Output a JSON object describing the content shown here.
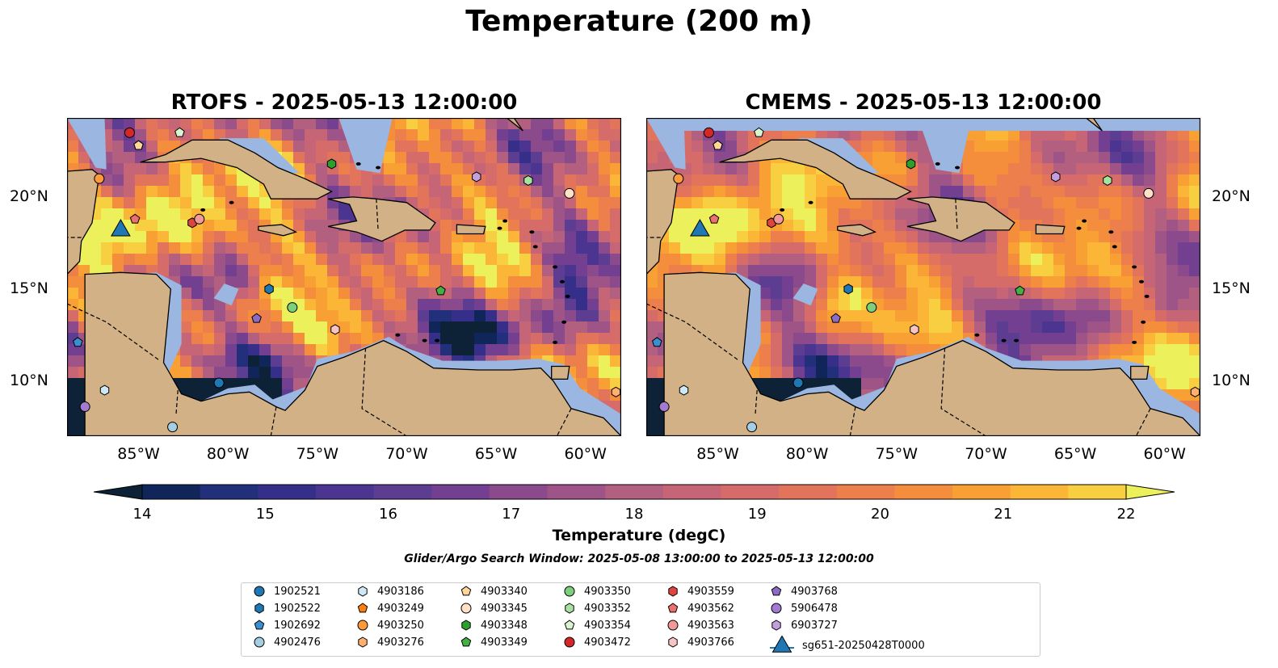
{
  "title": "Temperature (200 m)",
  "panels": [
    {
      "title": "RTOFS - 2025-05-13 12:00:00"
    },
    {
      "title": "CMEMS - 2025-05-13 12:00:00"
    }
  ],
  "map": {
    "lon_range": [
      -89,
      -58
    ],
    "lat_range": [
      7,
      24.3
    ],
    "lon_ticks": [
      "85°W",
      "80°W",
      "75°W",
      "70°W",
      "65°W",
      "60°W"
    ],
    "lat_ticks": [
      "10°N",
      "15°N",
      "20°N"
    ],
    "land_color": "#d1b185",
    "shallow_color": "#9bb6e0"
  },
  "colorbar": {
    "label": "Temperature (degC)",
    "ticks": [
      "14",
      "15",
      "16",
      "17",
      "18",
      "19",
      "20",
      "21",
      "22"
    ],
    "range": [
      14,
      22
    ],
    "colors": [
      "#0d2237",
      "#10265a",
      "#222f7a",
      "#362f8a",
      "#4b3590",
      "#5d3d92",
      "#733f91",
      "#8a4a8c",
      "#9e5486",
      "#b25f80",
      "#c66576",
      "#d66c6a",
      "#e2745c",
      "#ec7f4c",
      "#f48e3c",
      "#f8a033",
      "#fbb537",
      "#f9cf42",
      "#ecf05a"
    ]
  },
  "search_window": "Glider/Argo Search Window: 2025-05-08 13:00:00 to 2025-05-13 12:00:00",
  "legend": [
    {
      "label": "1902521",
      "marker": "circle",
      "color": "#1f77b4"
    },
    {
      "label": "1902522",
      "marker": "hexagon",
      "color": "#1f77b4"
    },
    {
      "label": "1902692",
      "marker": "pentagon",
      "color": "#3a8fd0"
    },
    {
      "label": "4902476",
      "marker": "circle",
      "color": "#a6cee3"
    },
    {
      "label": "4903186",
      "marker": "hexagon",
      "color": "#cfe8f5"
    },
    {
      "label": "4903249",
      "marker": "pentagon",
      "color": "#ff7f0e"
    },
    {
      "label": "4903250",
      "marker": "circle",
      "color": "#ff9a3c"
    },
    {
      "label": "4903276",
      "marker": "hexagon",
      "color": "#ffb070"
    },
    {
      "label": "4903340",
      "marker": "pentagon",
      "color": "#ffd59a"
    },
    {
      "label": "4903345",
      "marker": "circle",
      "color": "#ffe2c6"
    },
    {
      "label": "4903348",
      "marker": "hexagon",
      "color": "#2ca02c"
    },
    {
      "label": "4903349",
      "marker": "pentagon",
      "color": "#44b044"
    },
    {
      "label": "4903350",
      "marker": "circle",
      "color": "#7cd07c"
    },
    {
      "label": "4903352",
      "marker": "hexagon",
      "color": "#a6e3a0"
    },
    {
      "label": "4903354",
      "marker": "pentagon",
      "color": "#d8f5d0"
    },
    {
      "label": "4903472",
      "marker": "circle",
      "color": "#d62728"
    },
    {
      "label": "4903559",
      "marker": "hexagon",
      "color": "#e0443f"
    },
    {
      "label": "4903562",
      "marker": "pentagon",
      "color": "#ec7070"
    },
    {
      "label": "4903563",
      "marker": "circle",
      "color": "#f29a9a"
    },
    {
      "label": "4903766",
      "marker": "hexagon",
      "color": "#f8c4c4"
    },
    {
      "label": "4903768",
      "marker": "pentagon",
      "color": "#8c6bc4"
    },
    {
      "label": "5906478",
      "marker": "circle",
      "color": "#a27bd0"
    },
    {
      "label": "6903727",
      "marker": "hexagon",
      "color": "#c2a0e0"
    },
    {
      "label": "sg651-20250428T0000",
      "marker": "triangle",
      "color": "#1f77b4"
    }
  ],
  "floats": [
    {
      "id": "1902521",
      "lon": -80.5,
      "lat": 9.9
    },
    {
      "id": "1902522",
      "lon": -77.7,
      "lat": 15.0
    },
    {
      "id": "1902692",
      "lon": -88.4,
      "lat": 12.1
    },
    {
      "id": "4902476",
      "lon": -83.1,
      "lat": 7.5
    },
    {
      "id": "4903186",
      "lon": -86.9,
      "lat": 9.5
    },
    {
      "id": "4903249",
      "lon": -85.0,
      "lat": 22.8
    },
    {
      "id": "4903250",
      "lon": -87.2,
      "lat": 21.0
    },
    {
      "id": "4903276",
      "lon": -58.3,
      "lat": 9.4
    },
    {
      "id": "4903340",
      "lon": -85.0,
      "lat": 22.8
    },
    {
      "id": "4903345",
      "lon": -60.9,
      "lat": 20.2
    },
    {
      "id": "4903348",
      "lon": -74.2,
      "lat": 21.8
    },
    {
      "id": "4903349",
      "lon": -68.1,
      "lat": 14.9
    },
    {
      "id": "4903350",
      "lon": -76.4,
      "lat": 14.0
    },
    {
      "id": "4903352",
      "lon": -63.2,
      "lat": 20.9
    },
    {
      "id": "4903354",
      "lon": -82.7,
      "lat": 23.5
    },
    {
      "id": "4903472",
      "lon": -85.5,
      "lat": 23.5
    },
    {
      "id": "4903559",
      "lon": -82.0,
      "lat": 18.6
    },
    {
      "id": "4903562",
      "lon": -85.2,
      "lat": 18.8
    },
    {
      "id": "4903563",
      "lon": -81.6,
      "lat": 18.8
    },
    {
      "id": "4903766",
      "lon": -74.0,
      "lat": 12.8
    },
    {
      "id": "4903768",
      "lon": -78.4,
      "lat": 13.4
    },
    {
      "id": "5906478",
      "lon": -88.0,
      "lat": 8.6
    },
    {
      "id": "6903727",
      "lon": -66.1,
      "lat": 21.1
    },
    {
      "id": "sg651-20250428T0000",
      "lon": -86.0,
      "lat": 18.3
    }
  ]
}
